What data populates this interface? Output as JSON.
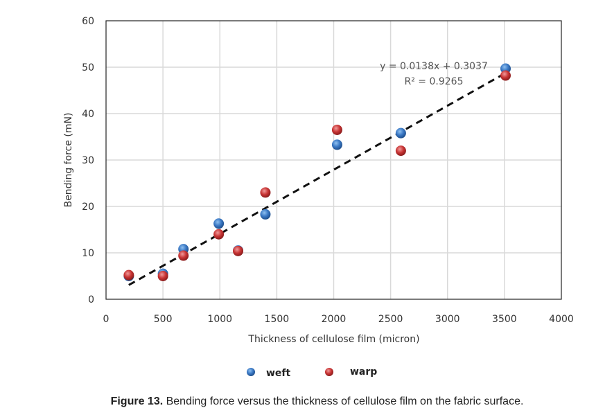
{
  "chart_data": {
    "type": "scatter",
    "title": "",
    "xlabel": "Thickness of cellulose film (micron)",
    "ylabel": "Bending force  (mN)",
    "xlim": [
      0,
      4000
    ],
    "ylim": [
      0,
      60
    ],
    "xticks": [
      0,
      500,
      1000,
      1500,
      2000,
      2500,
      3000,
      3500,
      4000
    ],
    "yticks": [
      0,
      10,
      20,
      30,
      40,
      50,
      60
    ],
    "grid": true,
    "legend_position": "bottom",
    "series": [
      {
        "name": "weft",
        "color": "#3a78c4",
        "x": [
          200,
          500,
          680,
          990,
          1160,
          1400,
          2030,
          2590,
          3510
        ],
        "y": [
          5.0,
          5.5,
          10.8,
          16.3,
          10.5,
          18.3,
          33.3,
          35.8,
          49.7
        ]
      },
      {
        "name": "warp",
        "color": "#c83434",
        "x": [
          200,
          500,
          680,
          990,
          1160,
          1400,
          2030,
          2590,
          3510
        ],
        "y": [
          5.2,
          5.0,
          9.4,
          14.0,
          10.4,
          23.0,
          36.5,
          32.0,
          48.2
        ]
      }
    ],
    "trendline": {
      "type": "linear",
      "slope": 0.0138,
      "intercept": 0.3037,
      "x_range": [
        200,
        3510
      ],
      "equation": "y = 0.0138x + 0.3037",
      "r2_label": "R² = 0.9265"
    }
  },
  "caption": {
    "label": "Figure 13.",
    "text": " Bending force versus the thickness of cellulose film on the fabric surface."
  }
}
